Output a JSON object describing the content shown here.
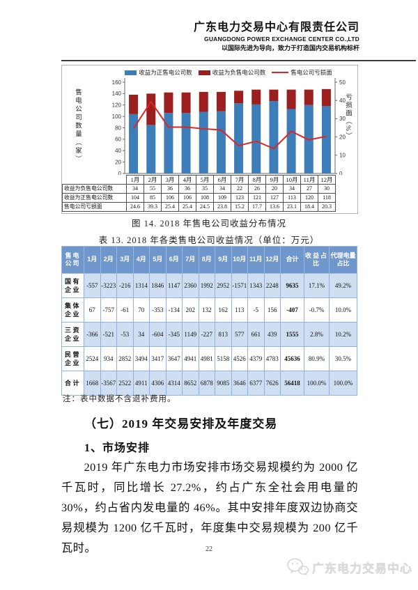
{
  "header": {
    "company_name_cn": "广东电力交易中心有限责任公司",
    "company_name_en": "GUANGDONG POWER EXCHANGE CENTER CO.,LTD",
    "slogan": "以国际先进为导向，致力于打造国内交易机构标杆"
  },
  "chart_data": {
    "type": "bar",
    "subtype": "stacked-bars-with-line",
    "title": "",
    "categories": [
      "1月",
      "2月",
      "3月",
      "4月",
      "5月",
      "6月",
      "7月",
      "8月",
      "9月",
      "10月",
      "11月",
      "12月"
    ],
    "series": [
      {
        "name": "收益为正售电公司数",
        "kind": "bar",
        "color": "#3d7eb8",
        "values": [
          104,
          85,
          106,
          106,
          108,
          109,
          123,
          121,
          127,
          113,
          120,
          118
        ]
      },
      {
        "name": "收益为负售电公司数",
        "kind": "bar",
        "color": "#9c1f1f",
        "values": [
          34,
          55,
          36,
          36,
          35,
          34,
          22,
          26,
          20,
          34,
          27,
          30
        ]
      },
      {
        "name": "售电公司亏损面",
        "kind": "line",
        "color": "#e02424",
        "axis": "right",
        "values": [
          24.6,
          39.3,
          25.4,
          25.4,
          24.5,
          23.8,
          15.2,
          17.7,
          13.6,
          23.1,
          18.4,
          20.3
        ]
      }
    ],
    "left_axis": {
      "title": "售电公司数量（家）",
      "min": 0,
      "max": 160,
      "step": 20
    },
    "right_axis": {
      "title": "亏损面（%）",
      "min": 0,
      "max": 50,
      "step": 10
    },
    "legend_position": "top",
    "grid": false
  },
  "figure_caption": "图 14. 2018 年售电公司收益分布情况",
  "table13": {
    "title": "表 13. 2018 年各类售电公司收益情况（单位：万元）",
    "header": [
      "售电公司",
      "1月",
      "2月",
      "3月",
      "4月",
      "5月",
      "6月",
      "7月",
      "8月",
      "9月",
      "10月",
      "11月",
      "12月",
      "合计",
      "收益占比",
      "代理电量占比"
    ],
    "rows": [
      {
        "label": "国有企业",
        "values": [
          "-557",
          "-3223",
          "-216",
          "1314",
          "1846",
          "1147",
          "2360",
          "1992",
          "2952",
          "-1571",
          "1343",
          "2248",
          "9635",
          "17.1%",
          "49.2%"
        ]
      },
      {
        "label": "集体企业",
        "values": [
          "67",
          "-757",
          "-61",
          "70",
          "-353",
          "-134",
          "202",
          "132",
          "162",
          "113",
          "-5",
          "156",
          "-407",
          "-0.7%",
          "10.0%"
        ]
      },
      {
        "label": "三资企业",
        "values": [
          "-366",
          "-521",
          "-53",
          "34",
          "-604",
          "-345",
          "1149",
          "-227",
          "813",
          "577",
          "661",
          "439",
          "1555",
          "2.8%",
          "10.2%"
        ]
      },
      {
        "label": "民营企业",
        "values": [
          "2524",
          "934",
          "2852",
          "3494",
          "3417",
          "3647",
          "4941",
          "4981",
          "5158",
          "4526",
          "4379",
          "4783",
          "45636",
          "80.9%",
          "30.5%"
        ]
      },
      {
        "label": "合计",
        "values": [
          "1668",
          "-3567",
          "2522",
          "4911",
          "4306",
          "4314",
          "8652",
          "6878",
          "9085",
          "3646",
          "6377",
          "7626",
          "56418",
          "100.0%",
          "100.0%"
        ]
      }
    ],
    "note": "注：表中数据不含退补费用。",
    "colors": {
      "header_bg": "#6f97cb",
      "band_bg": "#cfdff1",
      "border": "#8fb3dc"
    }
  },
  "section": {
    "heading": "（七）2019 年交易安排及年度交易",
    "subheading": "1、市场安排",
    "paragraph": "2019 年广东电力市场安排市场交易规模约为 2000 亿千瓦时，同比增长 27.2%，约占广东全社会用电量的 30%，约占省内发电量的 46%。其中安排年度双边协商交易规模为 1200 亿千瓦时，年度集中交易规模为 200 亿千瓦时。"
  },
  "page_number": "22",
  "footer": {
    "icon": "wechat-icon",
    "label": "广东电力交易中心"
  }
}
